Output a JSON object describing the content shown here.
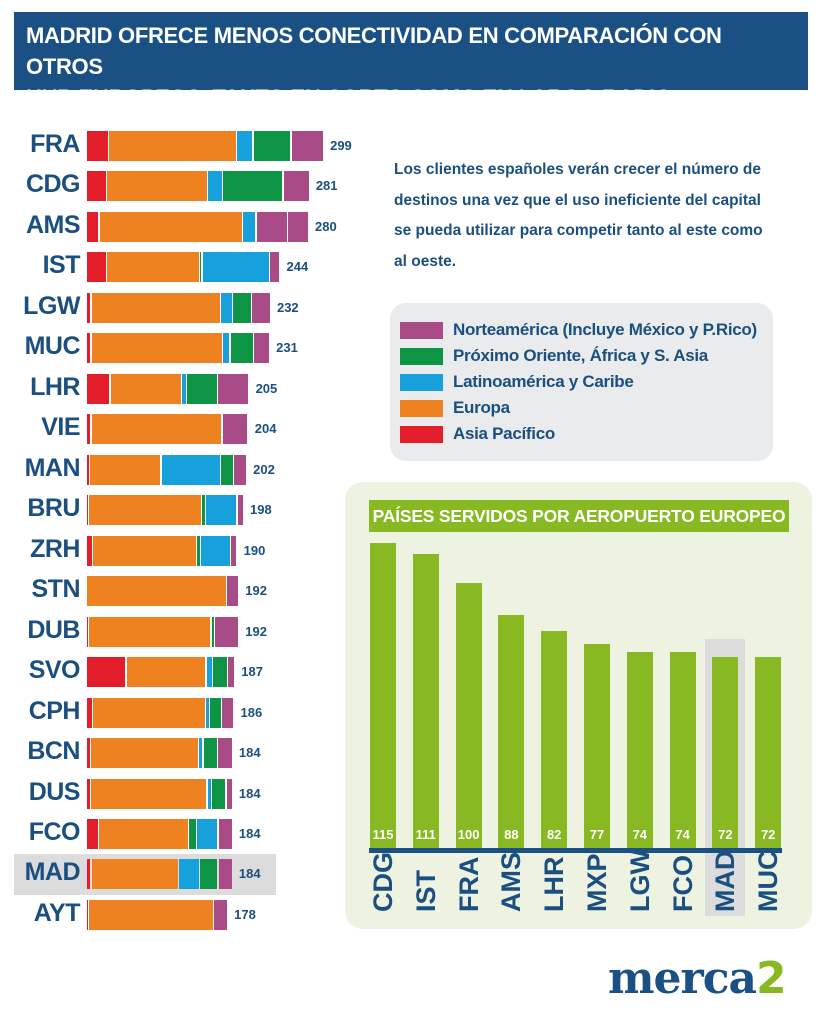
{
  "title": {
    "line1": "MADRID OFRECE MENOS CONECTIVIDAD EN COMPARACIÓN CON OTROS",
    "line2": "HUB EUROPEOS, TANTO EN CORTO COMO EN LARGO RADIO."
  },
  "note": "Los clientes españoles verán crecer el número de destinos una vez que el uso ineficiente del capital se pueda utilizar para competir tanto al este como al oeste.",
  "logo": {
    "text": "merca",
    "accent": "2"
  },
  "colors": {
    "na": "#a84b86",
    "po": "#0d9444",
    "la": "#16a0dc",
    "eu": "#ef8220",
    "ap": "#e31e2a",
    "green_bar": "#88b922",
    "navy": "#1b5084",
    "highlight": "#dcdcdc"
  },
  "chart_data": [
    {
      "type": "bar",
      "orientation": "horizontal",
      "stacked": true,
      "highlight": "MAD",
      "legend": [
        {
          "key": "na",
          "label": "Norteamérica (Incluye México y P.Rico)"
        },
        {
          "key": "po",
          "label": "Próximo Oriente, África y S. Asia"
        },
        {
          "key": "la",
          "label": "Latinoamérica y Caribe"
        },
        {
          "key": "eu",
          "label": "Europa"
        },
        {
          "key": "ap",
          "label": "Asia Pacífico"
        }
      ],
      "rows": [
        {
          "label": "FRA",
          "total": "299",
          "segments": [
            [
              "ap",
              28
            ],
            [
              "eu",
              161
            ],
            [
              "la",
              21
            ],
            [
              "po",
              48
            ],
            [
              "na",
              41
            ]
          ]
        },
        {
          "label": "CDG",
          "total": "281",
          "segments": [
            [
              "ap",
              25
            ],
            [
              "eu",
              128
            ],
            [
              "la",
              19
            ],
            [
              "po",
              76
            ],
            [
              "na",
              33
            ]
          ]
        },
        {
          "label": "AMS",
          "total": "280",
          "segments": [
            [
              "ap",
              16
            ],
            [
              "eu",
              181
            ],
            [
              "la",
              17
            ],
            [
              "na",
              40
            ],
            [
              "na",
              26
            ]
          ]
        },
        {
          "label": "IST",
          "total": "244",
          "segments": [
            [
              "ap",
              25
            ],
            [
              "eu",
              118
            ],
            [
              "po",
              3
            ],
            [
              "la",
              85
            ],
            [
              "na",
              13
            ]
          ]
        },
        {
          "label": "LGW",
          "total": "232",
          "segments": [
            [
              "ap",
              6
            ],
            [
              "eu",
              163
            ],
            [
              "la",
              15
            ],
            [
              "po",
              24
            ],
            [
              "na",
              24
            ]
          ]
        },
        {
          "label": "MUC",
          "total": "231",
          "segments": [
            [
              "ap",
              6
            ],
            [
              "eu",
              166
            ],
            [
              "la",
              9
            ],
            [
              "po",
              30
            ],
            [
              "na",
              20
            ]
          ]
        },
        {
          "label": "LHR",
          "total": "205",
          "segments": [
            [
              "ap",
              30
            ],
            [
              "eu",
              90
            ],
            [
              "la",
              6
            ],
            [
              "po",
              39
            ],
            [
              "na",
              40
            ]
          ]
        },
        {
          "label": "VIE",
          "total": "204",
          "segments": [
            [
              "ap",
              6
            ],
            [
              "eu",
              165
            ],
            [
              "na",
              33
            ]
          ]
        },
        {
          "label": "MAN",
          "total": "202",
          "segments": [
            [
              "ap",
              4
            ],
            [
              "eu",
              90
            ],
            [
              "la",
              75
            ],
            [
              "po",
              17
            ],
            [
              "na",
              16
            ]
          ]
        },
        {
          "label": "BRU",
          "total": "198",
          "segments": [
            [
              "ap",
              3
            ],
            [
              "eu",
              142
            ],
            [
              "po",
              5
            ],
            [
              "la",
              40
            ],
            [
              "na",
              8
            ]
          ]
        },
        {
          "label": "ZRH",
          "total": "190",
          "segments": [
            [
              "ap",
              8
            ],
            [
              "eu",
              131
            ],
            [
              "po",
              5
            ],
            [
              "la",
              38
            ],
            [
              "na",
              8
            ]
          ]
        },
        {
          "label": "STN",
          "total": "192",
          "segments": [
            [
              "eu",
              177
            ],
            [
              "na",
              15
            ]
          ]
        },
        {
          "label": "DUB",
          "total": "192",
          "segments": [
            [
              "ap",
              3
            ],
            [
              "eu",
              154
            ],
            [
              "po",
              5
            ],
            [
              "na",
              30
            ]
          ]
        },
        {
          "label": "SVO",
          "total": "187",
          "segments": [
            [
              "ap",
              50
            ],
            [
              "eu",
              101
            ],
            [
              "la",
              8
            ],
            [
              "po",
              19
            ],
            [
              "na",
              9
            ]
          ]
        },
        {
          "label": "CPH",
          "total": "186",
          "segments": [
            [
              "ap",
              8
            ],
            [
              "eu",
              142
            ],
            [
              "la",
              5
            ],
            [
              "po",
              15
            ],
            [
              "na",
              16
            ]
          ]
        },
        {
          "label": "BCN",
          "total": "184",
          "segments": [
            [
              "ap",
              5
            ],
            [
              "eu",
              136
            ],
            [
              "la",
              6
            ],
            [
              "po",
              18
            ],
            [
              "na",
              19
            ]
          ]
        },
        {
          "label": "DUS",
          "total": "184",
          "segments": [
            [
              "ap",
              5
            ],
            [
              "eu",
              147
            ],
            [
              "la",
              6
            ],
            [
              "po",
              18
            ],
            [
              "na",
              8
            ]
          ]
        },
        {
          "label": "FCO",
          "total": "184",
          "segments": [
            [
              "ap",
              15
            ],
            [
              "eu",
              114
            ],
            [
              "po",
              10
            ],
            [
              "la",
              27
            ],
            [
              "na",
              18
            ]
          ]
        },
        {
          "label": "MAD",
          "total": "184",
          "segments": [
            [
              "ap",
              6
            ],
            [
              "eu",
              110
            ],
            [
              "la",
              27
            ],
            [
              "po",
              23
            ],
            [
              "na",
              18
            ]
          ]
        },
        {
          "label": "AYT",
          "total": "178",
          "segments": [
            [
              "ap",
              3
            ],
            [
              "eu",
              157
            ],
            [
              "na",
              18
            ]
          ]
        }
      ]
    },
    {
      "type": "bar",
      "title": "PAÍSES SERVIDOS POR AEROPUERTO EUROPEO",
      "highlight": "MAD",
      "categories": [
        "CDG",
        "IST",
        "FRA",
        "AMS",
        "LHR",
        "MXP",
        "LGW",
        "FCO",
        "MAD",
        "MUC"
      ],
      "values": [
        115,
        111,
        100,
        88,
        82,
        77,
        74,
        74,
        72,
        72
      ],
      "labels": [
        "115",
        "111",
        "100",
        "88",
        "82",
        "77",
        "74",
        "74",
        "72",
        "72"
      ],
      "ylim": [
        0,
        115
      ]
    }
  ]
}
